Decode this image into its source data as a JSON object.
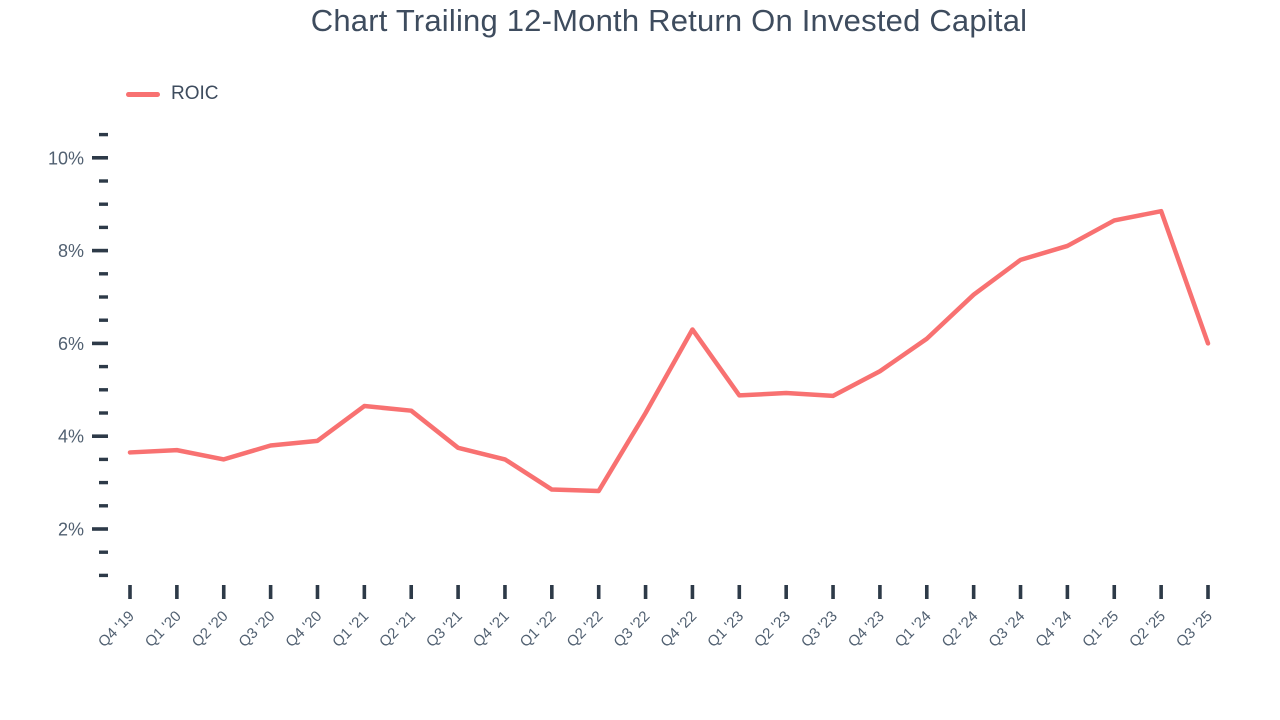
{
  "header": {
    "title": "Chart Trailing 12-Month Return On Invested Capital"
  },
  "legend": [
    {
      "label": "ROIC",
      "color": "#f87171"
    }
  ],
  "chart_data": {
    "type": "line",
    "title": "Chart Trailing 12-Month Return On Invested Capital",
    "x": [
      "Q4 '19",
      "Q1 '20",
      "Q2 '20",
      "Q3 '20",
      "Q4 '20",
      "Q1 '21",
      "Q2 '21",
      "Q3 '21",
      "Q4 '21",
      "Q1 '22",
      "Q2 '22",
      "Q3 '22",
      "Q4 '22",
      "Q1 '23",
      "Q2 '23",
      "Q3 '23",
      "Q4 '23",
      "Q1 '24",
      "Q2 '24",
      "Q3 '24",
      "Q4 '24",
      "Q1 '25",
      "Q2 '25",
      "Q3 '25"
    ],
    "series": [
      {
        "name": "ROIC",
        "color": "#f87171",
        "values": [
          3.65,
          3.7,
          3.5,
          3.8,
          3.9,
          4.65,
          4.55,
          3.75,
          3.5,
          2.85,
          2.82,
          4.5,
          6.3,
          4.88,
          4.93,
          4.87,
          5.4,
          6.1,
          7.05,
          7.8,
          8.1,
          8.65,
          8.85,
          6.0
        ]
      }
    ],
    "xlabel": "",
    "ylabel": "",
    "y_major_ticks": [
      2,
      4,
      6,
      8,
      10
    ],
    "y_major_tick_labels": [
      "2%",
      "4%",
      "6%",
      "8%",
      "10%"
    ],
    "y_minor_step": 0.5,
    "ylim": [
      1.0,
      10.5
    ],
    "grid": false,
    "legend_position": "top-left",
    "unit": "%"
  },
  "axis_style": {
    "tick_color": "#2d3a48",
    "label_color": "#516071"
  }
}
